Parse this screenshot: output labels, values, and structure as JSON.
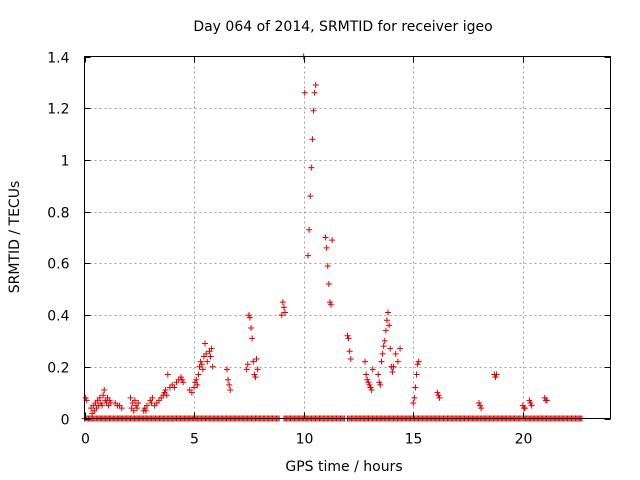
{
  "chart_data": {
    "type": "scatter",
    "title": "Day 064 of 2014, SRMTID for receiver igeo",
    "xlabel": "GPS time / hours",
    "ylabel": "SRMTID / TECUs",
    "xlim": [
      0,
      24
    ],
    "ylim": [
      0,
      1.4
    ],
    "xticks": [
      0,
      5,
      10,
      15,
      20
    ],
    "yticks": [
      0,
      0.2,
      0.4,
      0.6,
      0.8,
      1,
      1.2,
      1.4
    ],
    "ytick_labels": [
      "0",
      "0.2",
      "0.4",
      "0.6",
      "0.8",
      "1",
      "1.2",
      "1.4"
    ],
    "grid": true,
    "marker": "+",
    "color": "#e00000",
    "series": [
      {
        "name": "SRMTID",
        "points": [
          [
            0.05,
            0.08
          ],
          [
            0.1,
            0.07
          ],
          [
            0.3,
            0.04
          ],
          [
            0.35,
            0.02
          ],
          [
            0.4,
            0.05
          ],
          [
            0.45,
            0.03
          ],
          [
            0.5,
            0.06
          ],
          [
            0.55,
            0.04
          ],
          [
            0.6,
            0.07
          ],
          [
            0.65,
            0.05
          ],
          [
            0.7,
            0.08
          ],
          [
            0.75,
            0.06
          ],
          [
            0.8,
            0.05
          ],
          [
            0.85,
            0.09
          ],
          [
            0.9,
            0.11
          ],
          [
            0.95,
            0.07
          ],
          [
            1.0,
            0.06
          ],
          [
            1.05,
            0.08
          ],
          [
            1.1,
            0.05
          ],
          [
            1.15,
            0.07
          ],
          [
            1.2,
            0.06
          ],
          [
            1.4,
            0.06
          ],
          [
            1.5,
            0.05
          ],
          [
            1.6,
            0.05
          ],
          [
            1.7,
            0.04
          ],
          [
            2.1,
            0.08
          ],
          [
            2.15,
            0.04
          ],
          [
            2.2,
            0.06
          ],
          [
            2.25,
            0.03
          ],
          [
            2.3,
            0.07
          ],
          [
            2.35,
            0.05
          ],
          [
            2.4,
            0.04
          ],
          [
            2.45,
            0.06
          ],
          [
            2.7,
            0.03
          ],
          [
            2.75,
            0.04
          ],
          [
            2.8,
            0.03
          ],
          [
            2.85,
            0.05
          ],
          [
            3.0,
            0.07
          ],
          [
            3.05,
            0.06
          ],
          [
            3.1,
            0.08
          ],
          [
            3.2,
            0.05
          ],
          [
            3.3,
            0.06
          ],
          [
            3.4,
            0.07
          ],
          [
            3.5,
            0.08
          ],
          [
            3.6,
            0.09
          ],
          [
            3.65,
            0.1
          ],
          [
            3.7,
            0.11
          ],
          [
            3.75,
            0.09
          ],
          [
            3.8,
            0.17
          ],
          [
            3.9,
            0.12
          ],
          [
            4.0,
            0.13
          ],
          [
            4.1,
            0.12
          ],
          [
            4.2,
            0.14
          ],
          [
            4.3,
            0.15
          ],
          [
            4.4,
            0.16
          ],
          [
            4.45,
            0.15
          ],
          [
            4.5,
            0.14
          ],
          [
            4.8,
            0.11
          ],
          [
            4.9,
            0.1
          ],
          [
            5.0,
            0.12
          ],
          [
            5.05,
            0.14
          ],
          [
            5.1,
            0.15
          ],
          [
            5.15,
            0.13
          ],
          [
            5.2,
            0.17
          ],
          [
            5.25,
            0.2
          ],
          [
            5.3,
            0.22
          ],
          [
            5.35,
            0.21
          ],
          [
            5.4,
            0.19
          ],
          [
            5.45,
            0.24
          ],
          [
            5.5,
            0.29
          ],
          [
            5.55,
            0.25
          ],
          [
            5.6,
            0.22
          ],
          [
            5.7,
            0.26
          ],
          [
            5.75,
            0.24
          ],
          [
            5.8,
            0.27
          ],
          [
            5.85,
            0.2
          ],
          [
            6.5,
            0.19
          ],
          [
            6.55,
            0.15
          ],
          [
            6.6,
            0.13
          ],
          [
            6.65,
            0.11
          ],
          [
            7.4,
            0.19
          ],
          [
            7.45,
            0.21
          ],
          [
            7.5,
            0.4
          ],
          [
            7.55,
            0.39
          ],
          [
            7.6,
            0.35
          ],
          [
            7.65,
            0.31
          ],
          [
            7.7,
            0.22
          ],
          [
            7.75,
            0.17
          ],
          [
            7.8,
            0.16
          ],
          [
            7.85,
            0.23
          ],
          [
            7.9,
            0.19
          ],
          [
            9.0,
            0.4
          ],
          [
            9.05,
            0.45
          ],
          [
            9.1,
            0.43
          ],
          [
            9.15,
            0.41
          ],
          [
            10.0,
            1.4
          ],
          [
            10.05,
            1.26
          ],
          [
            10.2,
            0.63
          ],
          [
            10.25,
            0.73
          ],
          [
            10.3,
            0.86
          ],
          [
            10.35,
            0.97
          ],
          [
            10.4,
            1.08
          ],
          [
            10.45,
            1.19
          ],
          [
            10.5,
            1.26
          ],
          [
            10.55,
            1.29
          ],
          [
            11.0,
            0.7
          ],
          [
            11.05,
            0.66
          ],
          [
            11.1,
            0.59
          ],
          [
            11.15,
            0.52
          ],
          [
            11.2,
            0.45
          ],
          [
            11.25,
            0.44
          ],
          [
            11.3,
            0.69
          ],
          [
            12.0,
            0.32
          ],
          [
            12.05,
            0.31
          ],
          [
            12.1,
            0.26
          ],
          [
            12.15,
            0.23
          ],
          [
            12.8,
            0.22
          ],
          [
            12.85,
            0.17
          ],
          [
            12.9,
            0.15
          ],
          [
            12.95,
            0.14
          ],
          [
            13.0,
            0.13
          ],
          [
            13.05,
            0.12
          ],
          [
            13.1,
            0.11
          ],
          [
            13.15,
            0.19
          ],
          [
            13.4,
            0.17
          ],
          [
            13.45,
            0.14
          ],
          [
            13.5,
            0.13
          ],
          [
            13.55,
            0.22
          ],
          [
            13.6,
            0.25
          ],
          [
            13.65,
            0.28
          ],
          [
            13.7,
            0.3
          ],
          [
            13.75,
            0.34
          ],
          [
            13.8,
            0.38
          ],
          [
            13.85,
            0.41
          ],
          [
            13.9,
            0.36
          ],
          [
            13.95,
            0.27
          ],
          [
            14.0,
            0.2
          ],
          [
            14.05,
            0.18
          ],
          [
            14.1,
            0.2
          ],
          [
            14.2,
            0.25
          ],
          [
            14.3,
            0.22
          ],
          [
            14.4,
            0.27
          ],
          [
            15.0,
            0.06
          ],
          [
            15.05,
            0.08
          ],
          [
            15.1,
            0.12
          ],
          [
            15.15,
            0.17
          ],
          [
            15.2,
            0.21
          ],
          [
            15.25,
            0.22
          ],
          [
            16.1,
            0.1
          ],
          [
            16.15,
            0.09
          ],
          [
            16.2,
            0.08
          ],
          [
            18.0,
            0.06
          ],
          [
            18.05,
            0.05
          ],
          [
            18.1,
            0.04
          ],
          [
            18.7,
            0.17
          ],
          [
            18.75,
            0.16
          ],
          [
            18.8,
            0.17
          ],
          [
            20.0,
            0.05
          ],
          [
            20.05,
            0.04
          ],
          [
            20.1,
            0.04
          ],
          [
            20.3,
            0.07
          ],
          [
            20.35,
            0.06
          ],
          [
            20.4,
            0.05
          ],
          [
            21.0,
            0.08
          ],
          [
            21.05,
            0.07
          ],
          [
            21.1,
            0.07
          ]
        ],
        "zero_runs": [
          [
            0.0,
            8.9
          ],
          [
            9.1,
            11.9
          ],
          [
            12.0,
            19.95
          ],
          [
            20.0,
            22.7
          ]
        ]
      }
    ]
  }
}
